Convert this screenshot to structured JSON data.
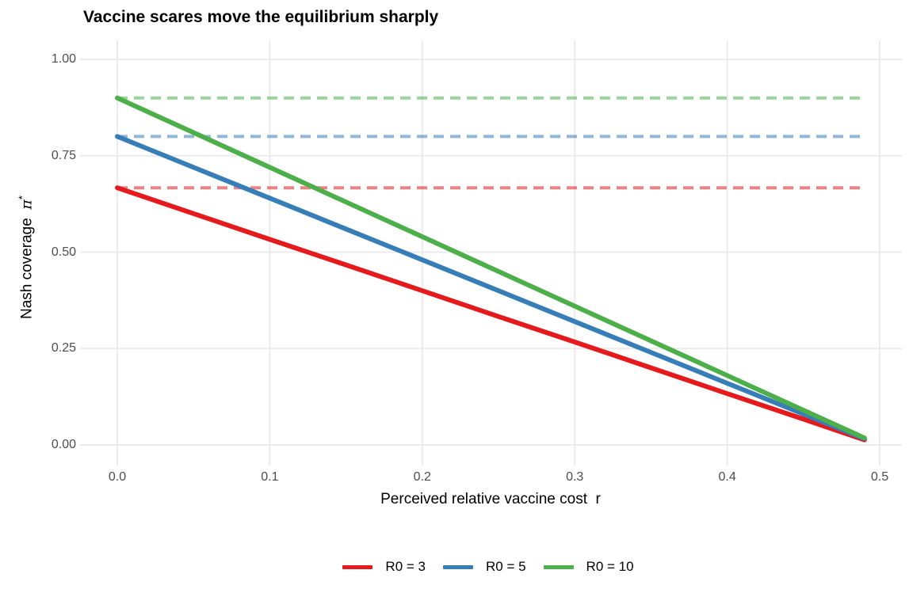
{
  "style": {
    "background": "#FFFFFF",
    "grid_color": "#EBEBEB",
    "tick_label_color": "#4D4D4D",
    "text_color": "#000000"
  },
  "chart_data": {
    "type": "line",
    "title": "Vaccine scares move the equilibrium sharply",
    "xlabel": "Perceived relative vaccine cost  r",
    "ylabel": "Nash coverage  π*",
    "ylabel_parts": {
      "text": "Nash coverage  ",
      "symbol": "π",
      "superscript": "*"
    },
    "xlim": [
      0.0,
      0.5
    ],
    "ylim": [
      0.0,
      1.0
    ],
    "grid": true,
    "x_ticks": {
      "values": [
        0.0,
        0.1,
        0.2,
        0.3,
        0.4,
        0.5
      ],
      "labels": [
        "0.0",
        "0.1",
        "0.2",
        "0.3",
        "0.4",
        "0.5"
      ]
    },
    "y_ticks": {
      "values": [
        0.0,
        0.25,
        0.5,
        0.75,
        1.0
      ],
      "labels": [
        "0.00",
        "0.25",
        "0.50",
        "0.75",
        "1.00"
      ]
    },
    "x": [
      0.0,
      0.05,
      0.1,
      0.15,
      0.2,
      0.25,
      0.3,
      0.35,
      0.4,
      0.45,
      0.49
    ],
    "series": [
      {
        "id": "r0-3",
        "name": "R0 = 3",
        "color": "#E41A1C",
        "values": [
          0.667,
          0.6,
          0.533,
          0.467,
          0.4,
          0.333,
          0.267,
          0.2,
          0.133,
          0.067,
          0.013
        ]
      },
      {
        "id": "r0-5",
        "name": "R0 = 5",
        "color": "#377EB8",
        "values": [
          0.8,
          0.72,
          0.64,
          0.56,
          0.48,
          0.4,
          0.32,
          0.24,
          0.16,
          0.08,
          0.016
        ]
      },
      {
        "id": "r0-10",
        "name": "R0 = 10",
        "color": "#4DAF4A",
        "values": [
          0.9,
          0.81,
          0.72,
          0.63,
          0.54,
          0.45,
          0.36,
          0.27,
          0.18,
          0.09,
          0.018
        ]
      }
    ],
    "reference_lines": [
      {
        "id": "herd-immunity-r0-3",
        "value": 0.667,
        "color": "#E41A1C",
        "style": "dashed",
        "opacity": 0.55
      },
      {
        "id": "herd-immunity-r0-5",
        "value": 0.8,
        "color": "#377EB8",
        "style": "dashed",
        "opacity": 0.55
      },
      {
        "id": "herd-immunity-r0-10",
        "value": 0.9,
        "color": "#4DAF4A",
        "style": "dashed",
        "opacity": 0.55
      }
    ],
    "legend": {
      "position": "bottom",
      "entries": [
        {
          "label": "R0 = 3",
          "color": "#E41A1C"
        },
        {
          "label": "R0 = 5",
          "color": "#377EB8"
        },
        {
          "label": "R0 = 10",
          "color": "#4DAF4A"
        }
      ]
    }
  }
}
